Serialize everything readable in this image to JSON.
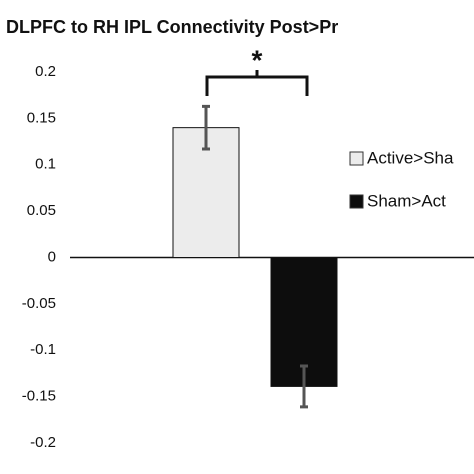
{
  "chart_data": {
    "type": "bar",
    "title": "DLPFC to RH IPL Connectivity Post>Pr",
    "annotation": "*",
    "series": [
      {
        "name": "Active>Sha",
        "color": "#ececec",
        "values": [
          0.14
        ],
        "errors": [
          0.023
        ]
      },
      {
        "name": "Sham>Act",
        "color": "#0d0d0d",
        "values": [
          -0.139
        ],
        "errors": [
          0.022
        ]
      }
    ],
    "ylim": [
      -0.2,
      0.2
    ],
    "yticks": [
      0.2,
      0.15,
      0.1,
      0.05,
      0,
      -0.05,
      -0.1,
      -0.15,
      -0.2
    ],
    "legend": "right"
  }
}
